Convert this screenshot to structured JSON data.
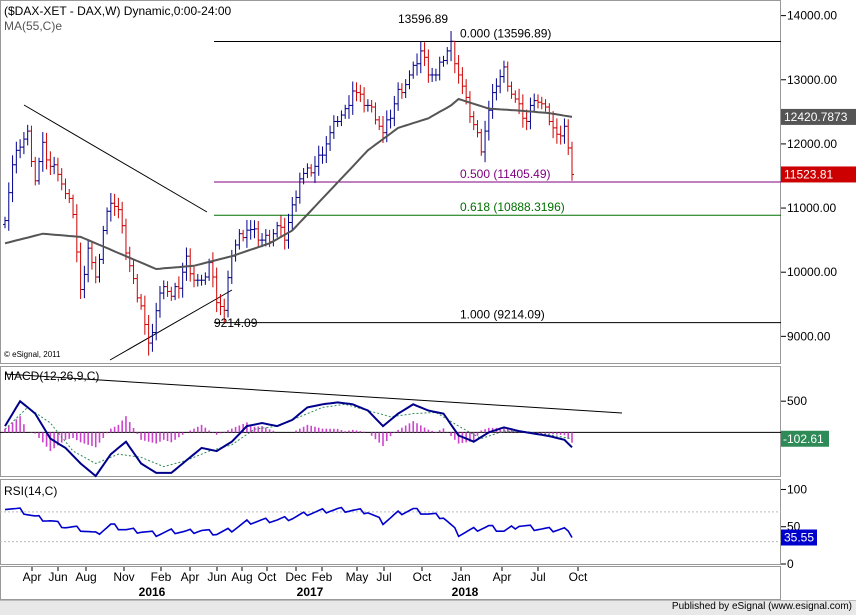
{
  "header": {
    "symbol_line": "($DAX-XET - DAX,W) Dynamic,0:00-24:00",
    "ma_label": "MA(55,C)e",
    "copyright": "© eSignal, 2011"
  },
  "footer": {
    "text": "Published by eSignal (www.esignal.com)"
  },
  "colors": {
    "up_bar": "#00008b",
    "down_bar": "#cc0000",
    "ma_line": "#555555",
    "fib_0": "#000000",
    "fib_500": "#800080",
    "fib_618": "#007000",
    "fib_1000": "#000000",
    "macd_line": "#00008b",
    "signal_line": "#2e8b57",
    "histogram": "#cc44cc",
    "rsi_line": "#0000cc",
    "last_price_bg": "#cc0000",
    "ma_value_bg": "#555555",
    "macd_value_bg": "#2e8b57",
    "rsi_value_bg": "#0000cc"
  },
  "chart_data": {
    "type": "candlestick",
    "x_ticks": [
      "Apr",
      "Jun",
      "Aug",
      "Nov",
      "Feb",
      "Apr",
      "Jun",
      "Aug",
      "Oct",
      "Dec",
      "Feb",
      "May",
      "Jul",
      "Oct",
      "Jan",
      "Apr",
      "Jul",
      "Oct"
    ],
    "years": [
      "2016",
      "2017",
      "2018"
    ],
    "price_panel": {
      "y_ticks": [
        "14000.00",
        "13000.00",
        "12000.00",
        "11000.00",
        "10000.00",
        "9000.00"
      ],
      "ylim": [
        8600,
        14150
      ],
      "last_price": "11523.81",
      "ma_value": "12420.7873",
      "swing_high_label": "13596.89",
      "swing_low_label": "9214.09",
      "fib_levels": [
        {
          "label": "0.000 (13596.89)",
          "value": 13596.89,
          "color": "#000000"
        },
        {
          "label": "0.500 (11405.49)",
          "value": 11405.49,
          "color": "#800080"
        },
        {
          "label": "0.618 (10888.3196)",
          "value": 10888.3196,
          "color": "#007000"
        },
        {
          "label": "1.000 (9214.09)",
          "value": 9214.09,
          "color": "#000000"
        }
      ],
      "price_anchors": [
        [
          0,
          10880
        ],
        [
          2,
          11650
        ],
        [
          4,
          12000
        ],
        [
          6,
          12150
        ],
        [
          8,
          11450
        ],
        [
          10,
          11950
        ],
        [
          12,
          11650
        ],
        [
          14,
          11600
        ],
        [
          16,
          11200
        ],
        [
          18,
          10950
        ],
        [
          20,
          9680
        ],
        [
          22,
          10400
        ],
        [
          24,
          9850
        ],
        [
          26,
          10650
        ],
        [
          28,
          11150
        ],
        [
          30,
          10950
        ],
        [
          32,
          10350
        ],
        [
          34,
          9850
        ],
        [
          36,
          9500
        ],
        [
          38,
          8820
        ],
        [
          40,
          9400
        ],
        [
          42,
          9850
        ],
        [
          44,
          9600
        ],
        [
          46,
          9800
        ],
        [
          48,
          10200
        ],
        [
          50,
          9900
        ],
        [
          52,
          9800
        ],
        [
          54,
          10150
        ],
        [
          56,
          9600
        ],
        [
          58,
          9380
        ],
        [
          60,
          10300
        ],
        [
          62,
          10550
        ],
        [
          64,
          10680
        ],
        [
          66,
          10600
        ],
        [
          68,
          10500
        ],
        [
          70,
          10550
        ],
        [
          72,
          10700
        ],
        [
          74,
          10550
        ],
        [
          76,
          11000
        ],
        [
          78,
          11480
        ],
        [
          80,
          11550
        ],
        [
          82,
          11650
        ],
        [
          84,
          11900
        ],
        [
          86,
          12150
        ],
        [
          88,
          12400
        ],
        [
          90,
          12500
        ],
        [
          92,
          12850
        ],
        [
          94,
          12700
        ],
        [
          96,
          12600
        ],
        [
          98,
          12450
        ],
        [
          100,
          12150
        ],
        [
          102,
          12450
        ],
        [
          104,
          12800
        ],
        [
          106,
          12950
        ],
        [
          108,
          13150
        ],
        [
          110,
          13450
        ],
        [
          112,
          13150
        ],
        [
          114,
          13050
        ],
        [
          116,
          13350
        ],
        [
          118,
          13550
        ],
        [
          120,
          13100
        ],
        [
          122,
          12650
        ],
        [
          124,
          12300
        ],
        [
          126,
          11950
        ],
        [
          128,
          12500
        ],
        [
          130,
          12950
        ],
        [
          132,
          13150
        ],
        [
          134,
          12800
        ],
        [
          136,
          12550
        ],
        [
          138,
          12350
        ],
        [
          140,
          12750
        ],
        [
          142,
          12600
        ],
        [
          144,
          12400
        ],
        [
          146,
          12100
        ],
        [
          148,
          12300
        ],
        [
          150,
          11523.81
        ]
      ],
      "ma_anchors": [
        [
          0,
          10450
        ],
        [
          10,
          10600
        ],
        [
          20,
          10550
        ],
        [
          30,
          10300
        ],
        [
          40,
          10050
        ],
        [
          50,
          10100
        ],
        [
          60,
          10250
        ],
        [
          70,
          10450
        ],
        [
          76,
          10650
        ],
        [
          80,
          10900
        ],
        [
          88,
          11400
        ],
        [
          96,
          11900
        ],
        [
          104,
          12250
        ],
        [
          112,
          12400
        ],
        [
          118,
          12600
        ],
        [
          120,
          12700
        ],
        [
          128,
          12550
        ],
        [
          136,
          12520
        ],
        [
          144,
          12480
        ],
        [
          150,
          12420.7873
        ]
      ]
    },
    "macd_panel": {
      "label": "MACD(12,26,9,C)",
      "y_ticks": [
        "500"
      ],
      "ylim": [
        -700,
        1000
      ],
      "value": "-102.61",
      "macd_anchors": [
        [
          0,
          100
        ],
        [
          4,
          500
        ],
        [
          8,
          300
        ],
        [
          12,
          -100
        ],
        [
          16,
          -250
        ],
        [
          20,
          -500
        ],
        [
          24,
          -700
        ],
        [
          28,
          -350
        ],
        [
          32,
          -150
        ],
        [
          36,
          -500
        ],
        [
          40,
          -650
        ],
        [
          44,
          -650
        ],
        [
          48,
          -450
        ],
        [
          52,
          -250
        ],
        [
          56,
          -300
        ],
        [
          60,
          -150
        ],
        [
          64,
          100
        ],
        [
          68,
          150
        ],
        [
          72,
          100
        ],
        [
          76,
          200
        ],
        [
          80,
          400
        ],
        [
          84,
          450
        ],
        [
          88,
          480
        ],
        [
          92,
          450
        ],
        [
          96,
          350
        ],
        [
          100,
          100
        ],
        [
          104,
          300
        ],
        [
          108,
          450
        ],
        [
          112,
          350
        ],
        [
          116,
          300
        ],
        [
          120,
          -50
        ],
        [
          124,
          -150
        ],
        [
          128,
          0
        ],
        [
          132,
          80
        ],
        [
          136,
          20
        ],
        [
          140,
          -20
        ],
        [
          144,
          -60
        ],
        [
          148,
          -120
        ],
        [
          150,
          -240
        ]
      ],
      "signal_anchors": [
        [
          0,
          50
        ],
        [
          6,
          400
        ],
        [
          12,
          150
        ],
        [
          18,
          -300
        ],
        [
          24,
          -500
        ],
        [
          30,
          -350
        ],
        [
          36,
          -400
        ],
        [
          42,
          -550
        ],
        [
          48,
          -450
        ],
        [
          54,
          -300
        ],
        [
          60,
          -200
        ],
        [
          66,
          50
        ],
        [
          72,
          100
        ],
        [
          78,
          250
        ],
        [
          84,
          400
        ],
        [
          90,
          450
        ],
        [
          96,
          350
        ],
        [
          102,
          250
        ],
        [
          108,
          300
        ],
        [
          114,
          320
        ],
        [
          120,
          100
        ],
        [
          126,
          -100
        ],
        [
          132,
          20
        ],
        [
          138,
          10
        ],
        [
          144,
          -40
        ],
        [
          150,
          -102.61
        ]
      ]
    },
    "rsi_panel": {
      "label": "RSI(14,C)",
      "y_ticks": [
        "100",
        "50",
        "0"
      ],
      "ylim": [
        0,
        110
      ],
      "value": "35.55",
      "rsi_anchors": [
        [
          0,
          76
        ],
        [
          4,
          72
        ],
        [
          8,
          63
        ],
        [
          12,
          58
        ],
        [
          16,
          50
        ],
        [
          20,
          47
        ],
        [
          24,
          40
        ],
        [
          28,
          52
        ],
        [
          32,
          46
        ],
        [
          36,
          44
        ],
        [
          40,
          40
        ],
        [
          44,
          44
        ],
        [
          48,
          43
        ],
        [
          52,
          45
        ],
        [
          56,
          41
        ],
        [
          60,
          46
        ],
        [
          64,
          56
        ],
        [
          68,
          58
        ],
        [
          72,
          59
        ],
        [
          76,
          62
        ],
        [
          80,
          68
        ],
        [
          84,
          71
        ],
        [
          88,
          73
        ],
        [
          92,
          72
        ],
        [
          96,
          70
        ],
        [
          100,
          56
        ],
        [
          104,
          68
        ],
        [
          108,
          73
        ],
        [
          112,
          67
        ],
        [
          116,
          63
        ],
        [
          120,
          40
        ],
        [
          124,
          46
        ],
        [
          128,
          50
        ],
        [
          132,
          44
        ],
        [
          136,
          52
        ],
        [
          140,
          48
        ],
        [
          144,
          46
        ],
        [
          148,
          47
        ],
        [
          150,
          35.55
        ]
      ]
    }
  }
}
